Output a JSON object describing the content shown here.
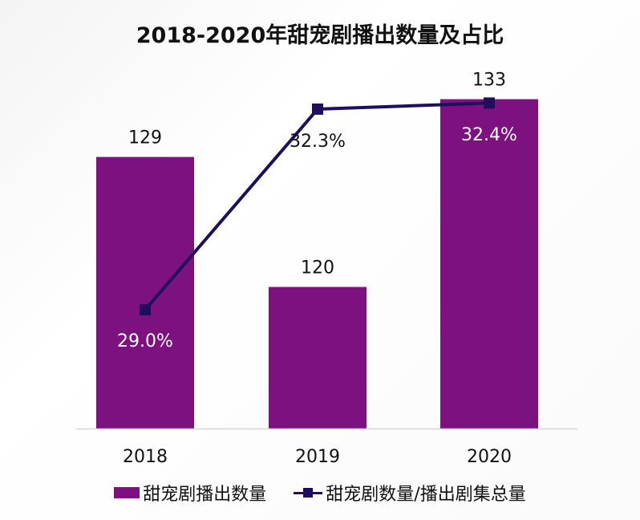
{
  "chart_data": {
    "type": "bar",
    "title": "2018-2020年甜宠剧播出数量及占比",
    "categories": [
      "2018",
      "2019",
      "2020"
    ],
    "series": [
      {
        "name": "甜宠剧播出数量",
        "type": "bar",
        "values": [
          129,
          120,
          133
        ],
        "labels": [
          "129",
          "120",
          "133"
        ],
        "color": "#7c117f"
      },
      {
        "name": "甜宠剧数量/播出剧集总量",
        "type": "line",
        "values": [
          29.0,
          32.3,
          32.4
        ],
        "labels": [
          "29.0%",
          "32.3%",
          "32.4%"
        ],
        "color": "#1f0e5e"
      }
    ],
    "bar_axis_range": [
      110.2,
      140
    ],
    "line_axis_range": [
      15,
      35
    ],
    "grid": false,
    "legend": "bottom"
  }
}
